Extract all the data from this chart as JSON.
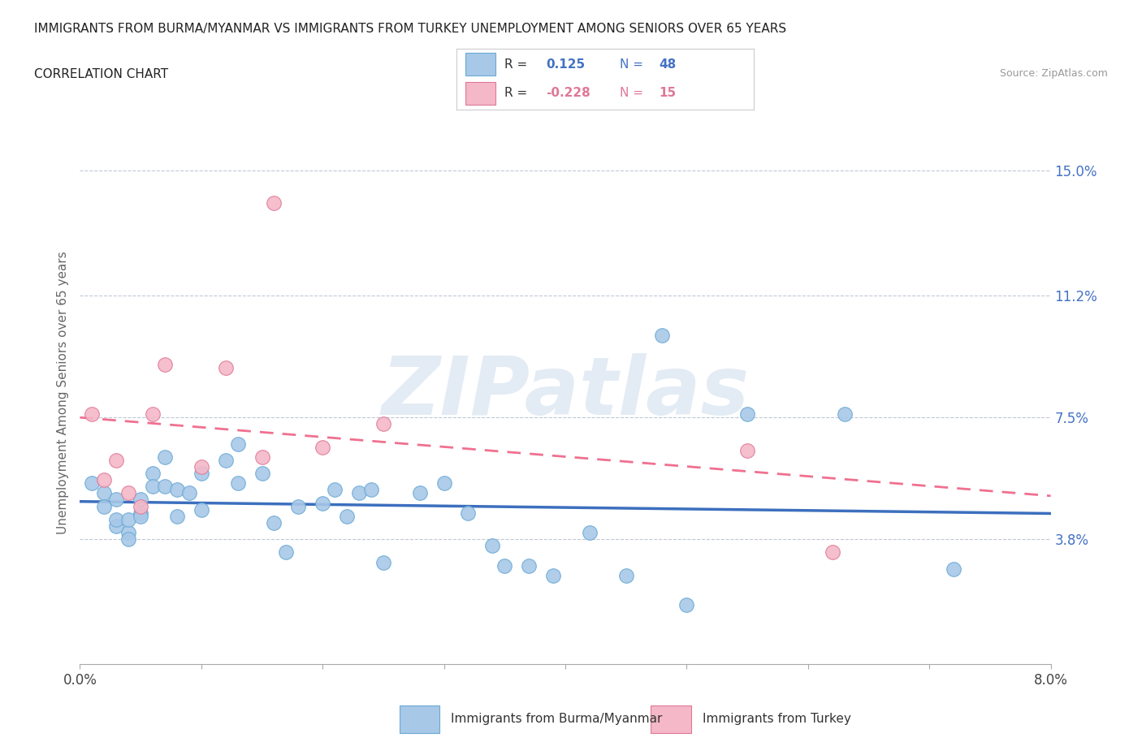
{
  "title_line1": "IMMIGRANTS FROM BURMA/MYANMAR VS IMMIGRANTS FROM TURKEY UNEMPLOYMENT AMONG SENIORS OVER 65 YEARS",
  "title_line2": "CORRELATION CHART",
  "source": "Source: ZipAtlas.com",
  "ylabel": "Unemployment Among Seniors over 65 years",
  "xlim": [
    0.0,
    0.08
  ],
  "ylim": [
    0.0,
    0.165
  ],
  "yticks": [
    0.038,
    0.075,
    0.112,
    0.15
  ],
  "ytick_labels": [
    "3.8%",
    "7.5%",
    "11.2%",
    "15.0%"
  ],
  "xticks": [
    0.0,
    0.01,
    0.02,
    0.03,
    0.04,
    0.05,
    0.06,
    0.07,
    0.08
  ],
  "xtick_labels_show": {
    "0.0": "0.0%",
    "0.08": "8.0%"
  },
  "burma_color": "#a8c8e8",
  "burma_edge_color": "#6aaad4",
  "turkey_color": "#f4b8c8",
  "turkey_edge_color": "#e07898",
  "burma_line_color": "#3c6fbe",
  "turkey_line_color": "#f07090",
  "turkey_line_dash": true,
  "burma_x": [
    0.001,
    0.002,
    0.002,
    0.003,
    0.003,
    0.003,
    0.004,
    0.004,
    0.004,
    0.005,
    0.005,
    0.005,
    0.006,
    0.006,
    0.007,
    0.007,
    0.008,
    0.008,
    0.009,
    0.01,
    0.01,
    0.012,
    0.013,
    0.013,
    0.015,
    0.016,
    0.017,
    0.018,
    0.02,
    0.021,
    0.022,
    0.023,
    0.024,
    0.025,
    0.028,
    0.03,
    0.032,
    0.034,
    0.035,
    0.037,
    0.039,
    0.042,
    0.045,
    0.048,
    0.05,
    0.055,
    0.063,
    0.072
  ],
  "burma_y": [
    0.055,
    0.052,
    0.048,
    0.042,
    0.05,
    0.044,
    0.04,
    0.038,
    0.044,
    0.05,
    0.046,
    0.045,
    0.058,
    0.054,
    0.063,
    0.054,
    0.045,
    0.053,
    0.052,
    0.058,
    0.047,
    0.062,
    0.067,
    0.055,
    0.058,
    0.043,
    0.034,
    0.048,
    0.049,
    0.053,
    0.045,
    0.052,
    0.053,
    0.031,
    0.052,
    0.055,
    0.046,
    0.036,
    0.03,
    0.03,
    0.027,
    0.04,
    0.027,
    0.1,
    0.018,
    0.076,
    0.076,
    0.029
  ],
  "turkey_x": [
    0.001,
    0.002,
    0.003,
    0.004,
    0.005,
    0.006,
    0.007,
    0.01,
    0.012,
    0.015,
    0.016,
    0.02,
    0.025,
    0.055,
    0.062
  ],
  "turkey_y": [
    0.076,
    0.056,
    0.062,
    0.052,
    0.048,
    0.076,
    0.091,
    0.06,
    0.09,
    0.063,
    0.14,
    0.066,
    0.073,
    0.065,
    0.034
  ],
  "watermark_text": "ZIPatlas",
  "watermark_color": "#c8d8ea",
  "watermark_alpha": 0.5,
  "legend_box_color": "#ffffff",
  "legend_border_color": "#cccccc",
  "r_burma_text": "0.125",
  "n_burma_text": "48",
  "r_turkey_text": "-0.228",
  "n_turkey_text": "15",
  "r_color_burma": "#4472c4",
  "r_color_turkey": "#e07898",
  "bottom_legend_burma": "Immigrants from Burma/Myanmar",
  "bottom_legend_turkey": "Immigrants from Turkey"
}
